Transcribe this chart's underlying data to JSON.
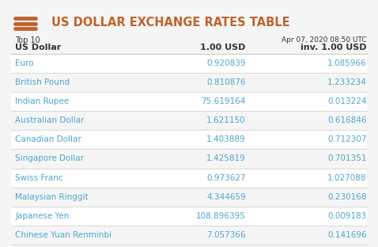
{
  "title": "US DOLLAR EXCHANGE RATES TABLE",
  "subtitle_left1": "Top 10",
  "subtitle_left2": "US Dollar",
  "subtitle_right1": "Apr 07, 2020 08:50 UTC",
  "col1_header": "1.00 USD",
  "col2_header": "inv. 1.00 USD",
  "currencies": [
    "Euro",
    "British Pound",
    "Indian Rupee",
    "Australian Dollar",
    "Canadian Dollar",
    "Singapore Dollar",
    "Swiss Franc",
    "Malaysian Ringgit",
    "Japanese Yen",
    "Chinese Yuan Renminbi"
  ],
  "values_col1": [
    "0.920839",
    "0.810876",
    "75.619164",
    "1.621150",
    "1.403889",
    "1.425819",
    "0.973627",
    "4.344659",
    "108.896395",
    "7.057366"
  ],
  "values_col2": [
    "1.085966",
    "1.233234",
    "0.013224",
    "0.616846",
    "0.712307",
    "0.701351",
    "1.027088",
    "0.230168",
    "0.009183",
    "0.141696"
  ],
  "bg_color": "#f5f5f5",
  "title_color": "#c0622d",
  "currency_color": "#4da6c8",
  "value_color": "#4da6c8",
  "header_text_color": "#333333",
  "line_color": "#cccccc",
  "icon_color": "#c0622d",
  "row_bg_white": "#ffffff",
  "row_bg_light": "#f5f5f5"
}
